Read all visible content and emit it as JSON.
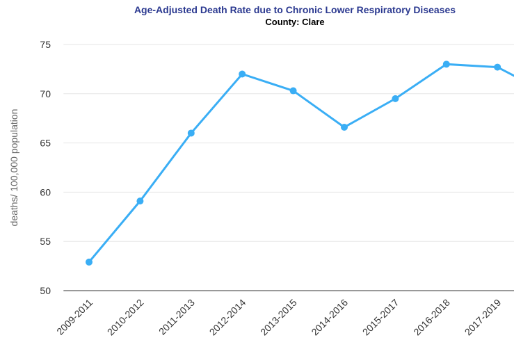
{
  "chart_data": {
    "type": "line",
    "title": "Age-Adjusted Death Rate due to Chronic Lower Respiratory Diseases",
    "subtitle": "County: Clare",
    "y_label": "deaths/ 100,000 population",
    "categories": [
      "2009-2011",
      "2010-2012",
      "2011-2013",
      "2012-2014",
      "2013-2015",
      "2014-2016",
      "2015-2017",
      "2016-2018",
      "2017-2019",
      null
    ],
    "series": [
      {
        "name": "Clare",
        "color": "#3aaef5",
        "values": [
          52.9,
          59.1,
          66.0,
          72.0,
          70.3,
          66.6,
          69.5,
          73.0,
          72.7,
          70.0
        ]
      }
    ],
    "ylim": [
      50,
      75
    ],
    "yticks": [
      50,
      55,
      60,
      65,
      70,
      75
    ],
    "grid": true
  }
}
